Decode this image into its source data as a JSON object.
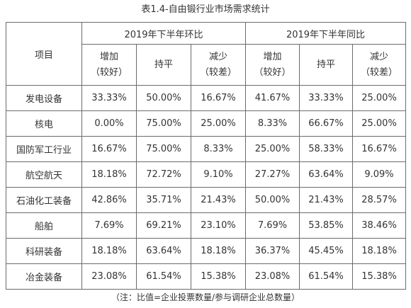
{
  "title": "表1.4-自由锻行业市场需求统计",
  "header": {
    "item": "项目",
    "group_huanbi": "2019年下半年环比",
    "group_tongbi": "2019年下半年同比",
    "inc_line1": "增加",
    "inc_line2": "（较好）",
    "flat": "持平",
    "dec_line1": "减少",
    "dec_line2": "（较差）"
  },
  "rows": [
    {
      "name": "发电设备",
      "values": [
        "33.33%",
        "50.00%",
        "16.67%",
        "41.67%",
        "33.33%",
        "25.00%"
      ]
    },
    {
      "name": "核电",
      "values": [
        "0.00%",
        "75.00%",
        "25.00%",
        "8.33%",
        "66.67%",
        "25.00%"
      ]
    },
    {
      "name": "国防军工行业",
      "values": [
        "16.67%",
        "75.00%",
        "8.33%",
        "25.00%",
        "58.33%",
        "16.67%"
      ]
    },
    {
      "name": "航空航天",
      "values": [
        "18.18%",
        "72.72%",
        "9.10%",
        "27.27%",
        "63.64%",
        "9.09%"
      ]
    },
    {
      "name": "石油化工装备",
      "values": [
        "42.86%",
        "35.71%",
        "21.43%",
        "50.00%",
        "21.43%",
        "28.57%"
      ]
    },
    {
      "name": "船舶",
      "values": [
        "7.69%",
        "69.21%",
        "23.10%",
        "7.69%",
        "53.85%",
        "38.46%"
      ]
    },
    {
      "name": "科研装备",
      "values": [
        "18.18%",
        "63.64%",
        "18.18%",
        "36.37%",
        "45.45%",
        "18.18%"
      ]
    },
    {
      "name": "冶金装备",
      "values": [
        "23.08%",
        "61.54%",
        "15.38%",
        "23.08%",
        "61.54%",
        "15.38%"
      ]
    }
  ],
  "note": "（注：比值=企业投票数量/参与调研企业总数量）"
}
